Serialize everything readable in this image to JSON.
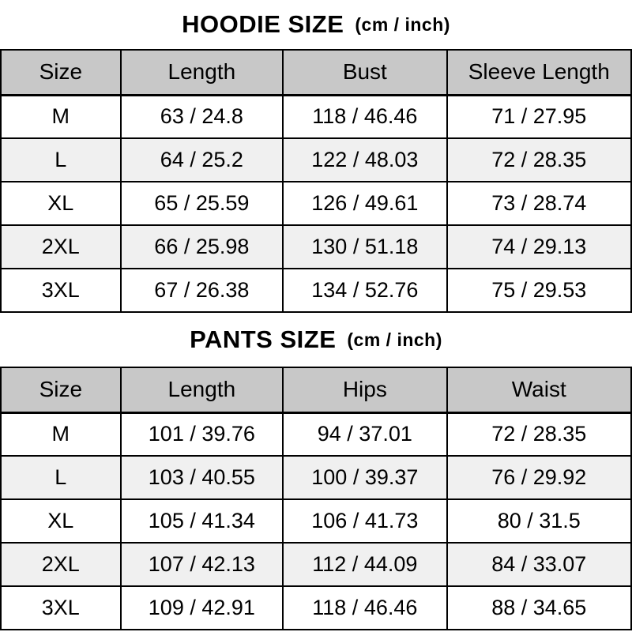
{
  "colors": {
    "header_bg": "#c8c8c8",
    "row_alt_bg": "#f0f0f0",
    "border": "#000000",
    "text": "#000000",
    "background": "#ffffff"
  },
  "chart_data": [
    {
      "type": "table",
      "title": "HOODIE SIZE",
      "subtitle": "(cm / inch)",
      "columns": [
        "Size",
        "Length",
        "Bust",
        "Sleeve Length"
      ],
      "rows": [
        [
          "M",
          "63 / 24.8",
          "118 / 46.46",
          "71 / 27.95"
        ],
        [
          "L",
          "64 / 25.2",
          "122 / 48.03",
          "72 / 28.35"
        ],
        [
          "XL",
          "65 / 25.59",
          "126 / 49.61",
          "73 / 28.74"
        ],
        [
          "2XL",
          "66 / 25.98",
          "130 / 51.18",
          "74 / 29.13"
        ],
        [
          "3XL",
          "67 / 26.38",
          "134 / 52.76",
          "75 / 29.53"
        ]
      ],
      "units": "cm / inch",
      "layout": {
        "grid": true,
        "zebra_striping": true,
        "header_shaded": true
      }
    },
    {
      "type": "table",
      "title": "PANTS SIZE",
      "subtitle": "(cm / inch)",
      "columns": [
        "Size",
        "Length",
        "Hips",
        "Waist"
      ],
      "rows": [
        [
          "M",
          "101 / 39.76",
          "94 / 37.01",
          "72 / 28.35"
        ],
        [
          "L",
          "103 / 40.55",
          "100 / 39.37",
          "76 / 29.92"
        ],
        [
          "XL",
          "105 / 41.34",
          "106 / 41.73",
          "80 / 31.5"
        ],
        [
          "2XL",
          "107 / 42.13",
          "112 / 44.09",
          "84 / 33.07"
        ],
        [
          "3XL",
          "109 / 42.91",
          "118 / 46.46",
          "88 / 34.65"
        ]
      ],
      "units": "cm / inch",
      "layout": {
        "grid": true,
        "zebra_striping": true,
        "header_shaded": true
      }
    }
  ]
}
